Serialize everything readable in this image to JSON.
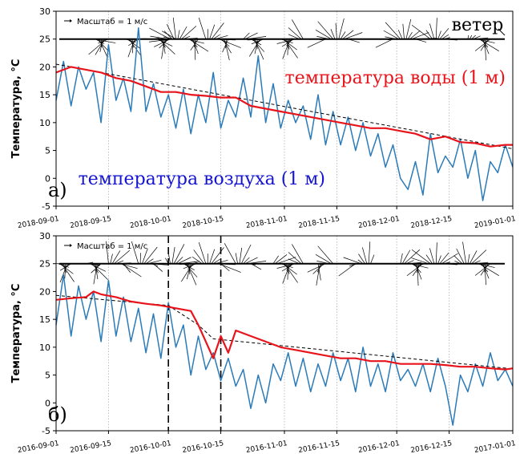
{
  "chart_data": [
    {
      "type": "line",
      "panel_label": "а)",
      "ylabel": "Температура, °C",
      "ylim": [
        -5,
        30
      ],
      "yticks": [
        -5,
        0,
        5,
        10,
        15,
        20,
        25,
        30
      ],
      "xlim": [
        "2018-09-01",
        "2019-01-01"
      ],
      "xticks": [
        "2018-09-01",
        "2018-09-15",
        "2018-10-01",
        "2018-10-15",
        "2018-11-01",
        "2018-11-15",
        "2018-12-01",
        "2018-12-15",
        "2019-01-01"
      ],
      "legend_text": "Масштаб = 1 м/с",
      "annotations": {
        "wind": "ветер",
        "water": "температура воды (1 м)",
        "air": "температура воздуха (1 м)"
      },
      "colors": {
        "water": "#e8141b",
        "air": "#2b7bb9",
        "trend": "#000000",
        "wind": "#000000"
      },
      "series": [
        {
          "key": "air",
          "label": "температура воздуха (1 м)",
          "x": [
            0,
            2,
            4,
            6,
            8,
            10,
            12,
            14,
            16,
            18,
            20,
            22,
            24,
            26,
            28,
            30,
            32,
            34,
            36,
            38,
            40,
            42,
            44,
            46,
            48,
            50,
            52,
            54,
            56,
            58,
            60,
            62,
            64,
            66,
            68,
            70,
            72,
            74,
            76,
            78,
            80,
            82,
            84,
            86,
            88,
            90,
            92,
            94,
            96,
            98,
            100,
            102,
            104,
            106,
            108,
            110,
            112,
            114,
            116,
            118,
            120,
            122
          ],
          "y": [
            14,
            21,
            13,
            20,
            16,
            19,
            10,
            24,
            14,
            18,
            12,
            27,
            12,
            17,
            11,
            15,
            9,
            16,
            8,
            15,
            10,
            19,
            9,
            14,
            11,
            18,
            11,
            22,
            10,
            17,
            9,
            14,
            10,
            13,
            7,
            15,
            6,
            12,
            6,
            11,
            5,
            10,
            4,
            8,
            2,
            6,
            0,
            -2,
            3,
            -3,
            8,
            1,
            4,
            2,
            7,
            0,
            5,
            -4,
            3,
            1,
            6,
            2
          ]
        },
        {
          "key": "water",
          "label": "температура воды (1 м)",
          "x": [
            0,
            4,
            8,
            12,
            16,
            20,
            24,
            28,
            32,
            36,
            40,
            44,
            48,
            52,
            56,
            60,
            64,
            68,
            72,
            76,
            80,
            84,
            88,
            92,
            96,
            100,
            104,
            108,
            112,
            116,
            120,
            122
          ],
          "y": [
            19,
            20,
            19.5,
            19,
            18,
            17.5,
            16.5,
            15.5,
            15.5,
            15,
            14.8,
            14.5,
            14.5,
            13,
            12.5,
            12,
            11.5,
            11,
            10.5,
            10,
            9.5,
            9,
            9,
            8.5,
            8,
            7,
            7.5,
            6.5,
            6.3,
            5.7,
            6,
            6
          ]
        },
        {
          "key": "trend",
          "label": "",
          "x": [
            0,
            122
          ],
          "y": [
            20.5,
            5.3
          ]
        }
      ],
      "wind_clusters": [
        [
          10,
          14
        ],
        [
          18,
          22
        ],
        [
          26,
          32
        ],
        [
          30,
          38
        ],
        [
          40,
          46
        ],
        [
          50,
          56
        ],
        [
          60,
          66
        ],
        [
          72,
          78
        ],
        [
          90,
          96
        ],
        [
          100,
          104
        ],
        [
          110,
          116
        ]
      ]
    },
    {
      "type": "line",
      "panel_label": "б)",
      "ylabel": "Температура, °C",
      "ylim": [
        -5,
        30
      ],
      "yticks": [
        -5,
        0,
        5,
        10,
        15,
        20,
        25,
        30
      ],
      "xlim": [
        "2016-09-01",
        "2017-01-01"
      ],
      "xticks": [
        "2016-09-01",
        "2016-09-15",
        "2016-10-01",
        "2016-10-15",
        "2016-11-01",
        "2016-11-15",
        "2016-12-01",
        "2016-12-15",
        "2017-01-01"
      ],
      "legend_text": "Масштаб = 1 м/с",
      "event_lines": [
        "2016-10-01",
        "2016-10-15"
      ],
      "colors": {
        "water": "#e8141b",
        "air": "#2b7bb9",
        "trend": "#000000",
        "wind": "#000000"
      },
      "series": [
        {
          "key": "air",
          "label": "",
          "x": [
            0,
            2,
            4,
            6,
            8,
            10,
            12,
            14,
            16,
            18,
            20,
            22,
            24,
            26,
            28,
            30,
            32,
            34,
            36,
            38,
            40,
            42,
            44,
            46,
            48,
            50,
            52,
            54,
            56,
            58,
            60,
            62,
            64,
            66,
            68,
            70,
            72,
            74,
            76,
            78,
            80,
            82,
            84,
            86,
            88,
            90,
            92,
            94,
            96,
            98,
            100,
            102,
            104,
            106,
            108,
            110,
            112,
            114,
            116,
            118,
            120,
            122
          ],
          "y": [
            14,
            23,
            12,
            21,
            15,
            20,
            11,
            22,
            12,
            19,
            11,
            17,
            9,
            16,
            8,
            18,
            10,
            14,
            5,
            12,
            6,
            9,
            4,
            8,
            3,
            6,
            -1,
            5,
            0,
            7,
            4,
            9,
            3,
            8,
            2,
            7,
            3,
            9,
            4,
            8,
            2,
            10,
            3,
            7,
            2,
            9,
            4,
            6,
            3,
            7,
            2,
            8,
            3,
            -4,
            5,
            2,
            7,
            3,
            9,
            4,
            6,
            3
          ]
        },
        {
          "key": "water",
          "label": "",
          "x": [
            0,
            4,
            8,
            10,
            12,
            16,
            20,
            24,
            28,
            32,
            36,
            38,
            40,
            42,
            44,
            46,
            48,
            52,
            56,
            60,
            64,
            68,
            72,
            76,
            80,
            84,
            88,
            92,
            96,
            100,
            104,
            108,
            112,
            116,
            120,
            122
          ],
          "y": [
            18.5,
            18.8,
            19,
            20,
            19.5,
            19,
            18.2,
            17.8,
            17.5,
            17,
            16.5,
            14,
            11,
            8,
            12,
            9,
            13,
            12,
            11,
            10,
            9.5,
            9,
            8.5,
            8,
            8,
            7.5,
            7.5,
            7,
            7,
            7,
            6.8,
            6.5,
            6.5,
            6.2,
            6,
            6.2
          ]
        },
        {
          "key": "trend",
          "label": "",
          "x": [
            0,
            30,
            38,
            42,
            122
          ],
          "y": [
            19.3,
            17.5,
            14,
            11.5,
            6.1
          ]
        }
      ],
      "wind_clusters": [
        [
          0,
          4
        ],
        [
          8,
          12
        ],
        [
          14,
          18
        ],
        [
          22,
          26
        ],
        [
          30,
          44
        ],
        [
          48,
          52
        ],
        [
          58,
          66
        ],
        [
          70,
          74
        ],
        [
          80,
          84
        ],
        [
          92,
          104
        ],
        [
          108,
          116
        ]
      ]
    }
  ]
}
